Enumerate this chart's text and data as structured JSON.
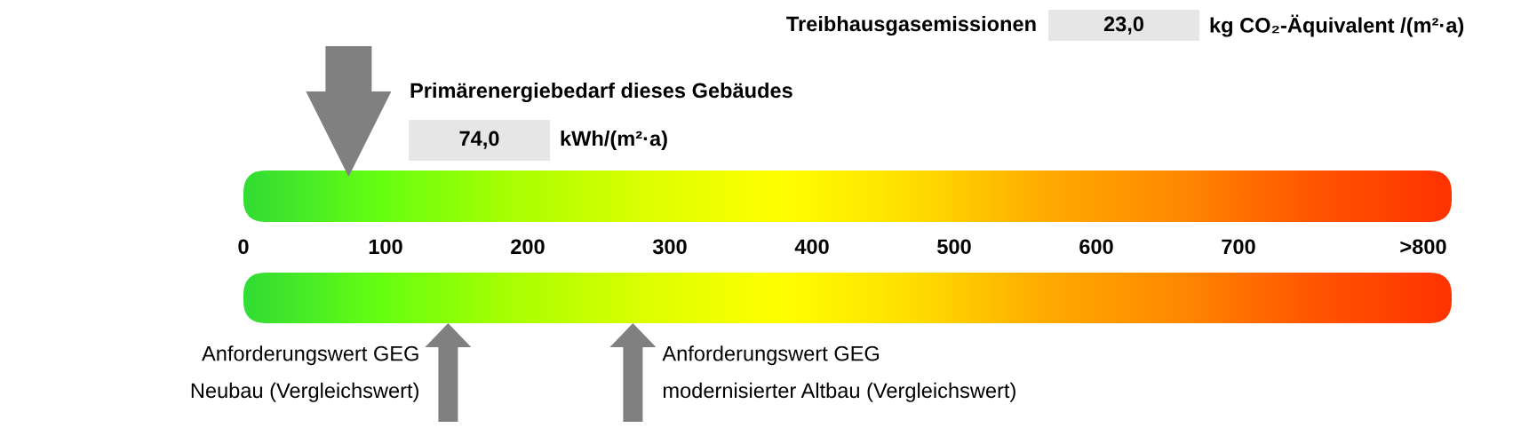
{
  "chart_data": {
    "type": "scatter",
    "orientation": "horizontal",
    "title": "Primärenergiebedarf dieses Gebäudes",
    "xlim": [
      0,
      850
    ],
    "xticks": [
      0,
      100,
      200,
      300,
      400,
      500,
      600,
      700,
      {
        "value": 830,
        "label": ">800"
      }
    ],
    "categories": [
      null
    ],
    "values": [
      74
    ],
    "color": "#808080",
    "marker": "triangle",
    "ref_lines": [
      {
        "axis": "x",
        "value": 144,
        "label": "Anforderungswert GEG\nNeubau (Vergleichswert)",
        "color": "#808080"
      },
      {
        "axis": "x",
        "value": 274,
        "label": "Anforderungswert GEG\nmodernisierter Altbau (Vergleichswert)",
        "color": "#808080"
      }
    ],
    "bands": [
      {
        "axis": "x",
        "from": 0,
        "to": 850
      }
    ],
    "annotations": [
      "Treibhausgasemissionen",
      "23,0",
      "kg CO₂-Äquivalent /(m²·a)",
      "74,0",
      "kWh/(m²·a)"
    ]
  }
}
